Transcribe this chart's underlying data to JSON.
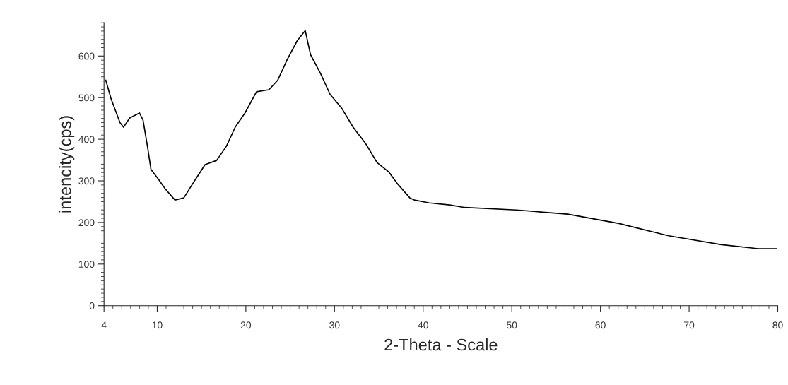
{
  "chart_data": {
    "type": "line",
    "xlabel": "2-Theta - Scale",
    "ylabel": "intencity(cps)",
    "series": [
      {
        "color": "#000000",
        "x": [
          4.2,
          4.8,
          5.8,
          6.2,
          6.9,
          8.0,
          8.4,
          8.9,
          9.3,
          10.1,
          10.9,
          12.0,
          13.0,
          14.0,
          15.4,
          16.7,
          17.8,
          18.8,
          19.9,
          21.2,
          22.6,
          23.6,
          24.7,
          25.8,
          26.7,
          27.3,
          28.4,
          29.5,
          30.8,
          32.1,
          33.5,
          34.8,
          36.1,
          37.1,
          38.5,
          39.0,
          40.7,
          43.0,
          44.7,
          50.5,
          56.3,
          62.0,
          67.7,
          73.5,
          77.8,
          79.9
        ],
        "values": [
          542,
          497,
          440,
          429,
          451,
          463,
          446,
          383,
          327,
          305,
          281,
          254,
          259,
          293,
          339,
          349,
          383,
          429,
          463,
          514,
          519,
          542,
          593,
          637,
          661,
          603,
          559,
          508,
          475,
          429,
          390,
          344,
          322,
          293,
          259,
          254,
          247,
          242,
          236,
          230,
          220,
          198,
          168,
          147,
          137,
          137
        ]
      }
    ],
    "xlim": [
      4,
      80
    ],
    "xticks": [
      4,
      10,
      20,
      30,
      40,
      50,
      60,
      70,
      80
    ],
    "ylim": [
      0,
      680
    ],
    "yticks": [
      0,
      100,
      200,
      300,
      400,
      500,
      600
    ],
    "grid": false,
    "marker": "none",
    "line_style": "solid"
  }
}
